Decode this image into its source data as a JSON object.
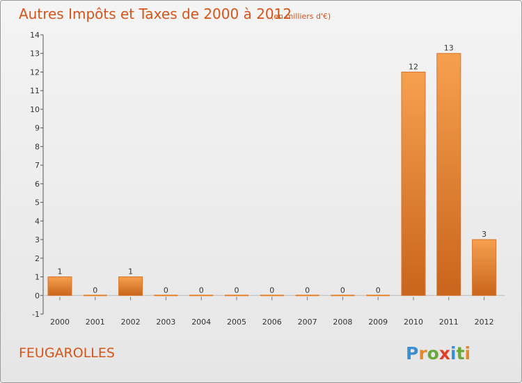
{
  "chart_data": {
    "type": "bar",
    "title": "Autres Impôts et Taxes de 2000 à 2012",
    "subtitle": "(en milliers d'€)",
    "categories": [
      "2000",
      "2001",
      "2002",
      "2003",
      "2004",
      "2005",
      "2006",
      "2007",
      "2008",
      "2009",
      "2010",
      "2011",
      "2012"
    ],
    "values": [
      1,
      0,
      1,
      0,
      0,
      0,
      0,
      0,
      0,
      0,
      12,
      13,
      3
    ],
    "ylim": [
      -1,
      14
    ],
    "yticks": [
      -1,
      0,
      1,
      2,
      3,
      4,
      5,
      6,
      7,
      8,
      9,
      10,
      11,
      12,
      13,
      14
    ],
    "grid": false,
    "bar_color": "#e8802a"
  },
  "commune": "FEUGAROLLES",
  "brand": {
    "name": "Proxiti",
    "letters": [
      "P",
      "r",
      "o",
      "x",
      "i",
      "t",
      "i"
    ],
    "colors": [
      "#3a8fd0",
      "#e58a2a",
      "#6aa83a",
      "#e0402a",
      "#3a8fd0",
      "#6aa83a",
      "#e58a2a"
    ]
  }
}
